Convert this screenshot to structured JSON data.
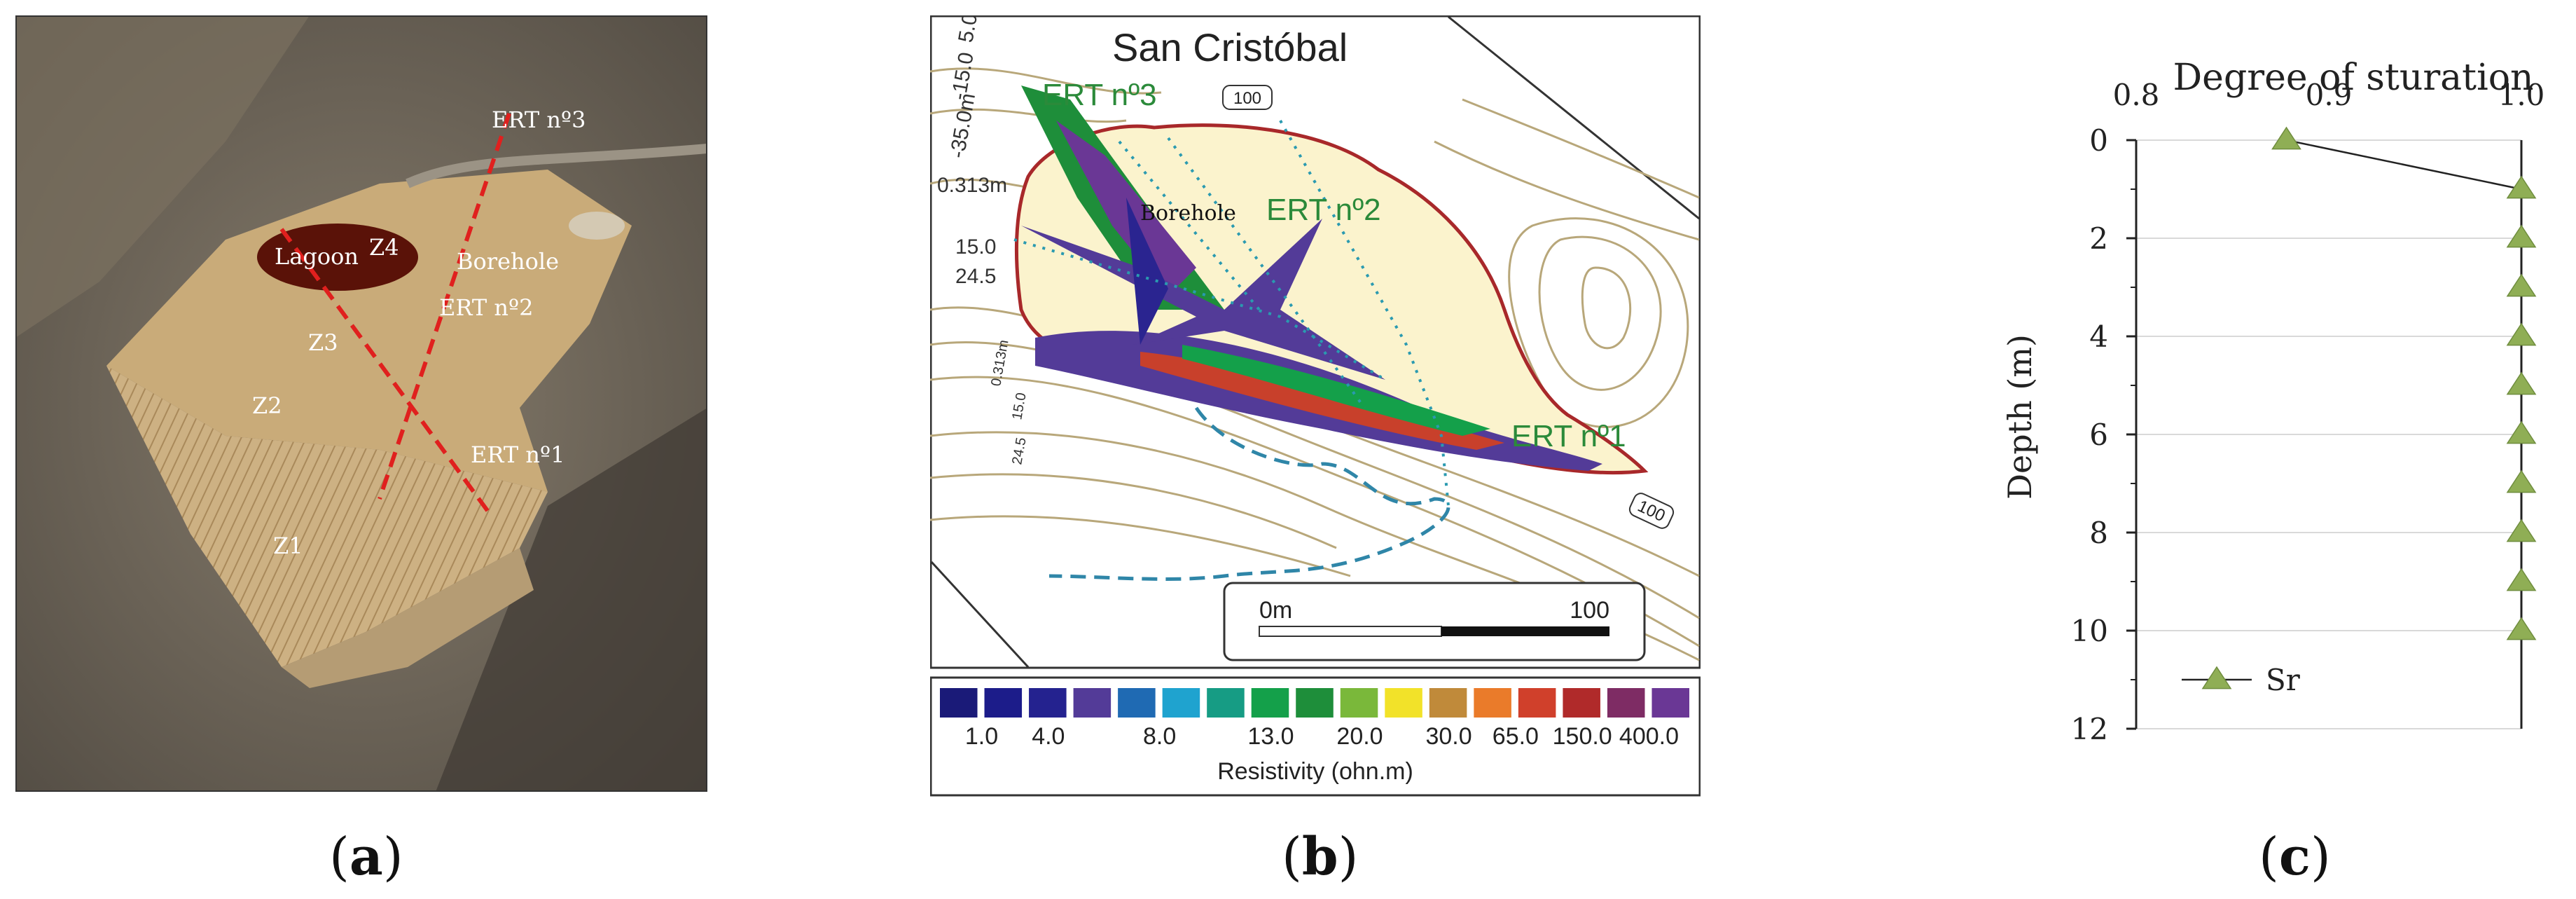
{
  "panel_a": {
    "label": {
      "pre": "(",
      "letter": "a",
      "post": ")"
    },
    "labels": {
      "ert3": "ERT nº3",
      "lagoon": "Lagoon",
      "z4": "Z4",
      "borehole": "Borehole",
      "ert2": "ERT nº2",
      "z3": "Z3",
      "z2": "Z2",
      "ert1": "ERT nº1",
      "z1": "Z1"
    },
    "colors": {
      "line": "#e0201e",
      "lagoon": "#5a1208",
      "tailings": "#c7a774",
      "terrain": "#6d6558"
    }
  },
  "panel_b": {
    "label": {
      "pre": "(",
      "letter": "b",
      "post": ")"
    },
    "title": "San Cristóbal",
    "labels": {
      "ert3": "ERT nº3",
      "ert2": "ERT nº2",
      "ert1": "ERT nº1",
      "borehole": "Borehole"
    },
    "contour_labels": {
      "top": "100",
      "right": "100"
    },
    "depth_labels": {
      "d1": "5.0",
      "d2": "-15.0",
      "d3": "-35.0m",
      "d4": "0.313m",
      "d5": "15.0",
      "d6": "24.5",
      "d7": "0.313m",
      "d8": "15.0",
      "d9": "24.5"
    },
    "scale_bar": {
      "start": "0m",
      "end": "100"
    },
    "legend": {
      "title": "Resistivity (ohn.m)",
      "tick_labels": [
        "1.0",
        "4.0",
        "8.0",
        "13.0",
        "20.0",
        "30.0",
        "65.0",
        "150.0",
        "400.0"
      ],
      "colors": [
        "#1a1a78",
        "#1c1c8a",
        "#24228f",
        "#533b98",
        "#1f6ab3",
        "#1fa3cf",
        "#169c84",
        "#14a04a",
        "#1e8e3a",
        "#7ab83a",
        "#f2e229",
        "#c08a3a",
        "#ea7b2a",
        "#d0402b",
        "#b02a2a",
        "#7e2c64",
        "#6a3795"
      ]
    },
    "colors": {
      "outline": "#a8282a",
      "fill": "#fbf3cd",
      "contour": "#b8a77a",
      "ert_text": "#2b8a3a"
    }
  },
  "panel_c": {
    "label": {
      "pre": "(",
      "letter": "c",
      "post": ")"
    },
    "chart_data": {
      "type": "line",
      "title": "Degree of sturation",
      "ylabel": "Depth (m)",
      "xlabel": "",
      "xlim": [
        0.8,
        1.0
      ],
      "ylim": [
        0,
        12
      ],
      "y_inverted": true,
      "x_axis_position": "top",
      "x_tick_labels": [
        "0.8",
        "0.9",
        "1.0"
      ],
      "x_ticks": [
        0.8,
        0.9,
        1.0
      ],
      "y_tick_labels": [
        "0",
        "2",
        "4",
        "6",
        "8",
        "10",
        "12"
      ],
      "y_ticks": [
        0,
        2,
        4,
        6,
        8,
        10,
        12
      ],
      "grid": "horizontal",
      "legend_position": "bottom-left",
      "series": [
        {
          "name": "Sr",
          "color": "#8fae55",
          "marker": "triangle",
          "x": [
            0.878,
            1.0,
            1.0,
            1.0,
            1.0,
            1.0,
            1.0,
            1.0,
            1.0,
            1.0,
            1.0
          ],
          "y": [
            0,
            1,
            2,
            3,
            4,
            5,
            6,
            7,
            8,
            9,
            10
          ]
        }
      ]
    }
  }
}
